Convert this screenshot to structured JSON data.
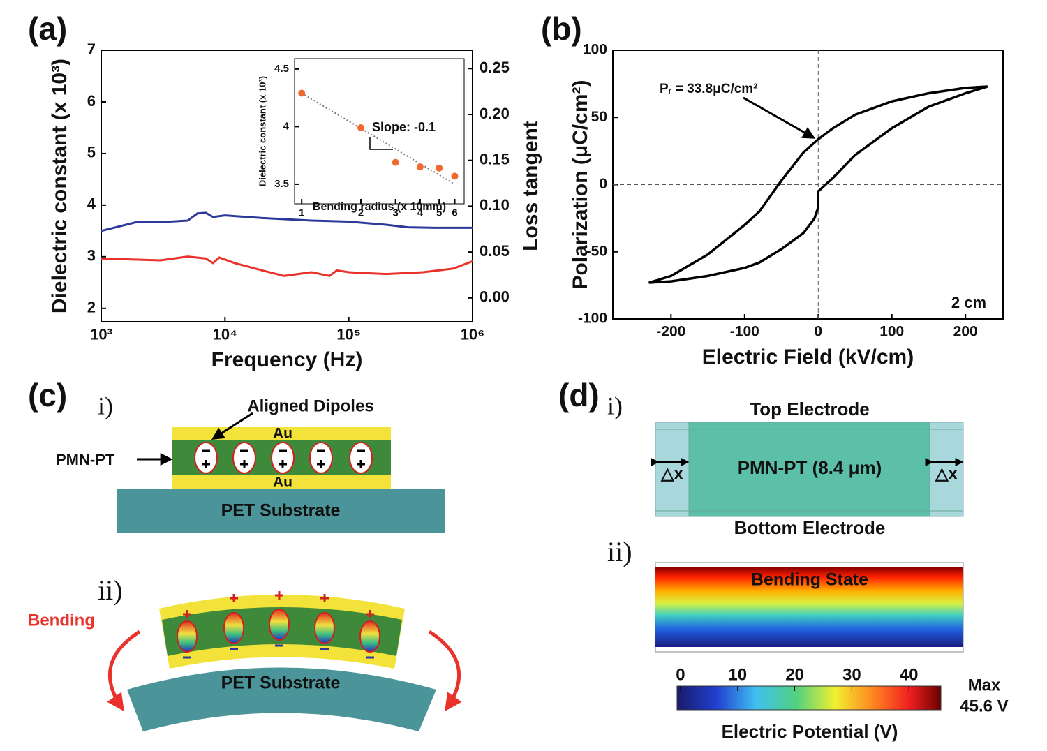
{
  "chart_data": [
    {
      "type": "line",
      "panel_label": "(a)",
      "x_label": "Frequency (Hz)",
      "y_label": "Dielectric constant (x 10³)",
      "y2_label": "Loss tangent",
      "xlog": true,
      "xlim": [
        1000,
        1000000
      ],
      "xticks": [
        {
          "value": 1000,
          "label": "10³"
        },
        {
          "value": 10000,
          "label": "10⁴"
        },
        {
          "value": 100000,
          "label": "10⁵"
        },
        {
          "value": 1000000,
          "label": "10⁶"
        }
      ],
      "ylim": [
        1.74,
        7
      ],
      "yticks": [
        2,
        3,
        4,
        5,
        6,
        7
      ],
      "y2lim": [
        -0.026,
        0.27
      ],
      "y2ticks": [
        {
          "value": 0,
          "label": "0.00"
        },
        0.05,
        {
          "value": 0.1,
          "label": "0.10"
        },
        0.15,
        {
          "value": 0.2,
          "label": "0.20"
        },
        0.25
      ],
      "series": [
        {
          "color": "#2b3a9a",
          "x": [
            1000,
            2000,
            3000,
            5000,
            6000,
            7000,
            8000,
            10000,
            20000,
            50000,
            100000,
            200000,
            300000,
            500000,
            1000000
          ],
          "values": [
            3.5,
            3.68,
            3.67,
            3.7,
            3.84,
            3.85,
            3.77,
            3.8,
            3.75,
            3.7,
            3.68,
            3.62,
            3.57,
            3.56,
            3.56
          ]
        },
        {
          "color": "#e8322b",
          "axis": "y2",
          "x": [
            1000,
            3000,
            5000,
            7000,
            8000,
            9000,
            12000,
            20000,
            30000,
            50000,
            70000,
            80000,
            100000,
            200000,
            400000,
            700000,
            1000000
          ],
          "values": [
            0.043,
            0.041,
            0.045,
            0.043,
            0.038,
            0.044,
            0.038,
            0.03,
            0.024,
            0.028,
            0.024,
            0.03,
            0.028,
            0.026,
            0.028,
            0.032,
            0.04
          ]
        }
      ]
    },
    {
      "type": "scatter",
      "x_label": "Bending radius (x 10mm)",
      "y_label": "Dielectric constant (x 10³)",
      "annotation": "Slope: -0.1",
      "xlog": true,
      "xlim": [
        0.92,
        6.7
      ],
      "xticks": [
        1,
        2,
        3,
        4,
        5,
        6
      ],
      "ylim": [
        3.33,
        4.59
      ],
      "yticks": [
        3.5,
        4,
        4.5
      ],
      "series": [
        {
          "color": "#f06a30",
          "x": [
            1,
            2,
            3,
            4,
            5,
            6
          ],
          "values": [
            4.29,
            3.99,
            3.69,
            3.65,
            3.64,
            3.57
          ]
        }
      ],
      "fit": {
        "color": "#777777",
        "x": [
          1,
          6
        ],
        "values": [
          4.29,
          3.5
        ]
      }
    },
    {
      "type": "line",
      "panel_label": "(b)",
      "x_label": "Electric Field (kV/cm)",
      "y_label": "Polarization (μC/cm²)",
      "annotation": "Pᵣ = 33.8μC/cm²",
      "scale_bar": "2 cm",
      "xlim": [
        -279,
        251
      ],
      "xticks": [
        -200,
        -100,
        0,
        100,
        200
      ],
      "ylim": [
        -100,
        100
      ],
      "yticks": [
        -100,
        -50,
        0,
        50,
        100
      ],
      "series": [
        {
          "color": "#000000",
          "x": [
            230,
            200,
            150,
            100,
            50,
            20,
            0,
            -20,
            -50,
            -80,
            -100,
            -150,
            -200,
            -230,
            -200,
            -150,
            -100,
            -80,
            -50,
            -20,
            -5,
            0,
            0,
            20,
            50,
            100,
            150,
            200,
            230
          ],
          "values": [
            73,
            72,
            68,
            62,
            52,
            42,
            33.8,
            24,
            3,
            -20,
            -30,
            -52,
            -68,
            -73,
            -72,
            -68,
            -62,
            -58,
            -48,
            -36,
            -25,
            -17,
            -5,
            5,
            22,
            42,
            58,
            68,
            73
          ]
        }
      ]
    }
  ],
  "panel_c": {
    "label": "(c)",
    "part_i": "i)",
    "aligned_dipoles": "Aligned Dipoles",
    "au_top": "Au",
    "au_bottom": "Au",
    "pmn_pt": "PMN-PT",
    "substrate": "PET Substrate",
    "part_ii": "ii)",
    "bending": "Bending",
    "substrate_bent": "PET Substrate"
  },
  "panel_d": {
    "label": "(d)",
    "part_i": "i)",
    "top_electrode": "Top Electrode",
    "layer": "PMN-PT (8.4 μm)",
    "dx_left": "△x",
    "dx_right": "△x",
    "bottom_electrode": "Bottom Electrode",
    "part_ii": "ii)",
    "bending_state": "Bending State",
    "colorbar": {
      "lim": [
        -0.6,
        45.6
      ],
      "ticks": [
        0,
        10,
        20,
        30,
        40
      ],
      "max": "Max",
      "max_value": "45.6 V",
      "label": "Electric Potential (V)"
    }
  }
}
